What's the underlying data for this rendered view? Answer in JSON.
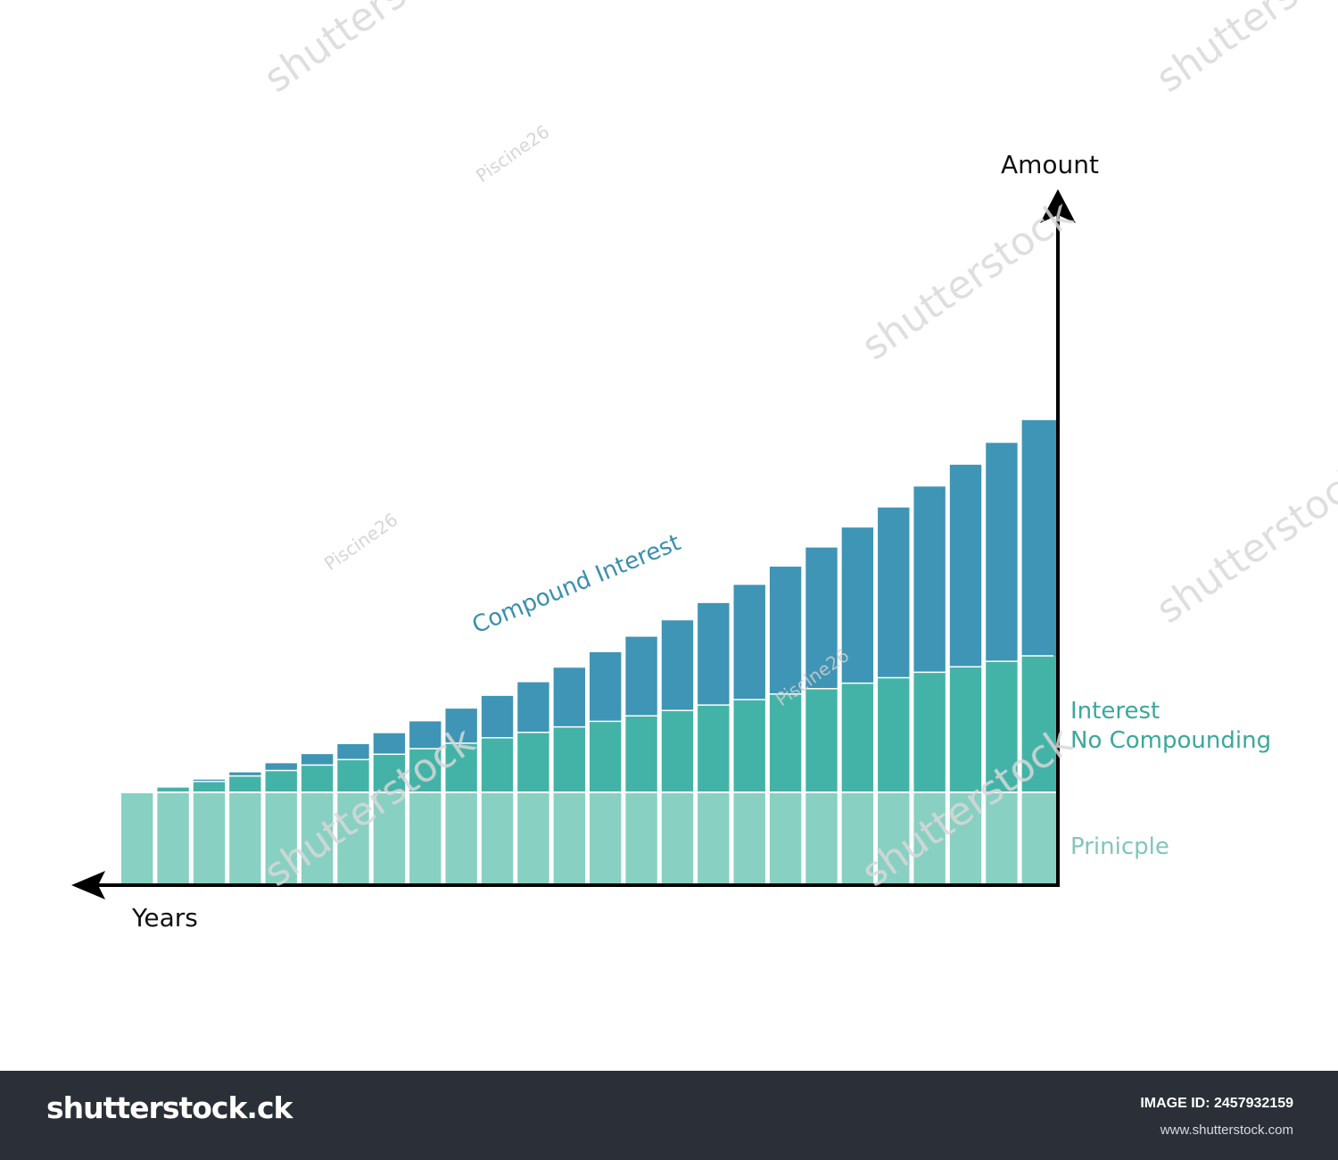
{
  "chart_data": {
    "type": "bar",
    "stacked": true,
    "bar_count": 26,
    "series": [
      {
        "name": "Prinicple",
        "color": "#88d0c2",
        "values": [
          100,
          100,
          100,
          100,
          100,
          100,
          100,
          100,
          100,
          100,
          100,
          100,
          100,
          100,
          100,
          100,
          100,
          100,
          100,
          100,
          100,
          100,
          100,
          100,
          100,
          100
        ]
      },
      {
        "name": "Interest No Compounding",
        "color": "#44b3a7",
        "values": [
          0,
          6,
          12,
          18,
          24,
          30,
          36,
          42,
          48,
          54,
          60,
          66,
          72,
          78,
          84,
          90,
          96,
          102,
          108,
          114,
          120,
          126,
          132,
          138,
          144,
          150
        ]
      },
      {
        "name": "Compound Interest",
        "color": "#3e95b5",
        "values": [
          0,
          0,
          2,
          4,
          8,
          12,
          17,
          23,
          30,
          38,
          46,
          55,
          65,
          76,
          87,
          99,
          112,
          126,
          140,
          155,
          171,
          187,
          204,
          222,
          240,
          259
        ]
      }
    ],
    "xlabel": "Years",
    "ylabel": "Amount",
    "x_direction": "right-to-left",
    "legend": "right, next to each band"
  },
  "labels": {
    "amount": "Amount",
    "years": "Years",
    "compound_interest": "Compound Interest",
    "interest_line1": "Interest",
    "interest_line2": "No Compounding",
    "principle": "Prinicple"
  },
  "colors": {
    "principle": "#88d0c2",
    "simple_interest": "#44b3a7",
    "compound_interest": "#3e95b5",
    "compound_label": "#3a8fae",
    "interest_label": "#3aa89b",
    "principle_label": "#7fc7ba",
    "axis": "#000000",
    "footer_bg": "#2b2f37"
  },
  "watermark": {
    "brand": "shutterstock",
    "contributor": "Piscine26"
  },
  "footer": {
    "brand": "shutterstock.ck",
    "image_id": "IMAGE ID: 2457932159",
    "site": "www.shutterstock.com"
  }
}
